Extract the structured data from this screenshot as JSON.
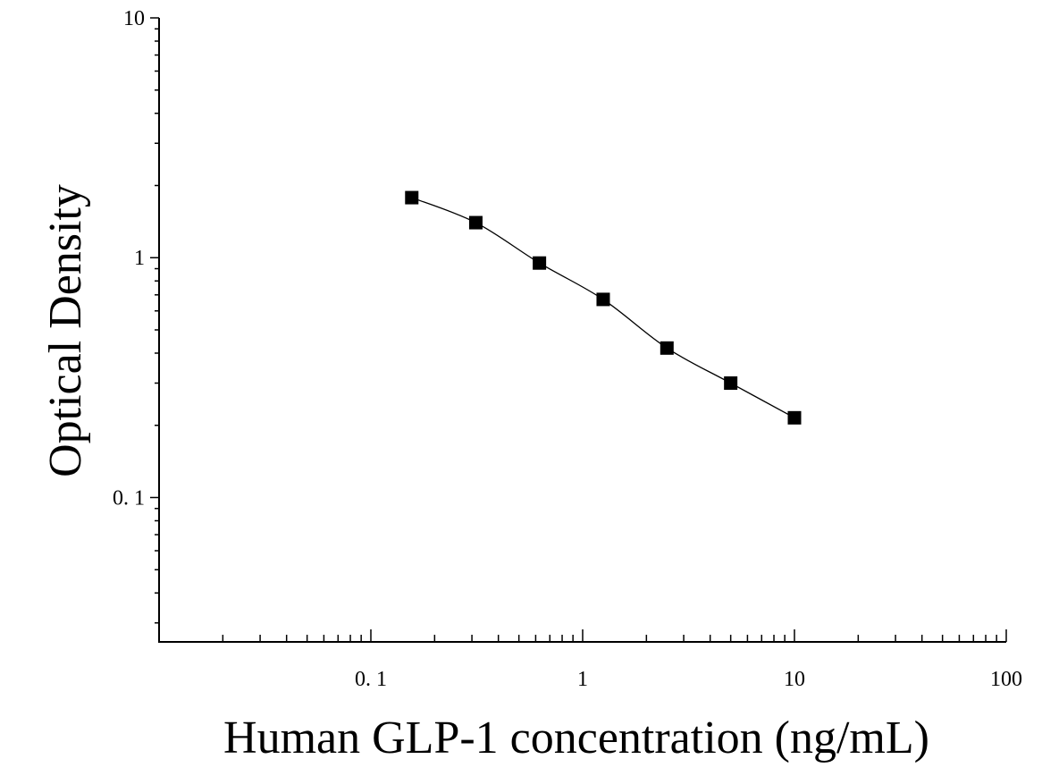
{
  "chart_data": {
    "type": "scatter",
    "title": "",
    "xlabel": "Human GLP-1 concentration (ng/mL)",
    "ylabel": "Optical Density",
    "x_scale": "log",
    "y_scale": "log",
    "xlim": [
      0.01,
      100
    ],
    "ylim": [
      0.025,
      10
    ],
    "x_ticks": [
      {
        "value": 0.1,
        "label": "0. 1"
      },
      {
        "value": 1,
        "label": "1"
      },
      {
        "value": 10,
        "label": "10"
      },
      {
        "value": 100,
        "label": "100"
      }
    ],
    "y_ticks": [
      {
        "value": 0.1,
        "label": "0. 1"
      },
      {
        "value": 1,
        "label": "1"
      },
      {
        "value": 10,
        "label": "10"
      }
    ],
    "grid": false,
    "legend": "none",
    "series": [
      {
        "marker": "square",
        "fit_line": true,
        "color": "#000000",
        "x": [
          0.156,
          0.313,
          0.625,
          1.25,
          2.5,
          5,
          10
        ],
        "y": [
          1.78,
          1.4,
          0.95,
          0.67,
          0.42,
          0.3,
          0.215
        ]
      }
    ]
  }
}
